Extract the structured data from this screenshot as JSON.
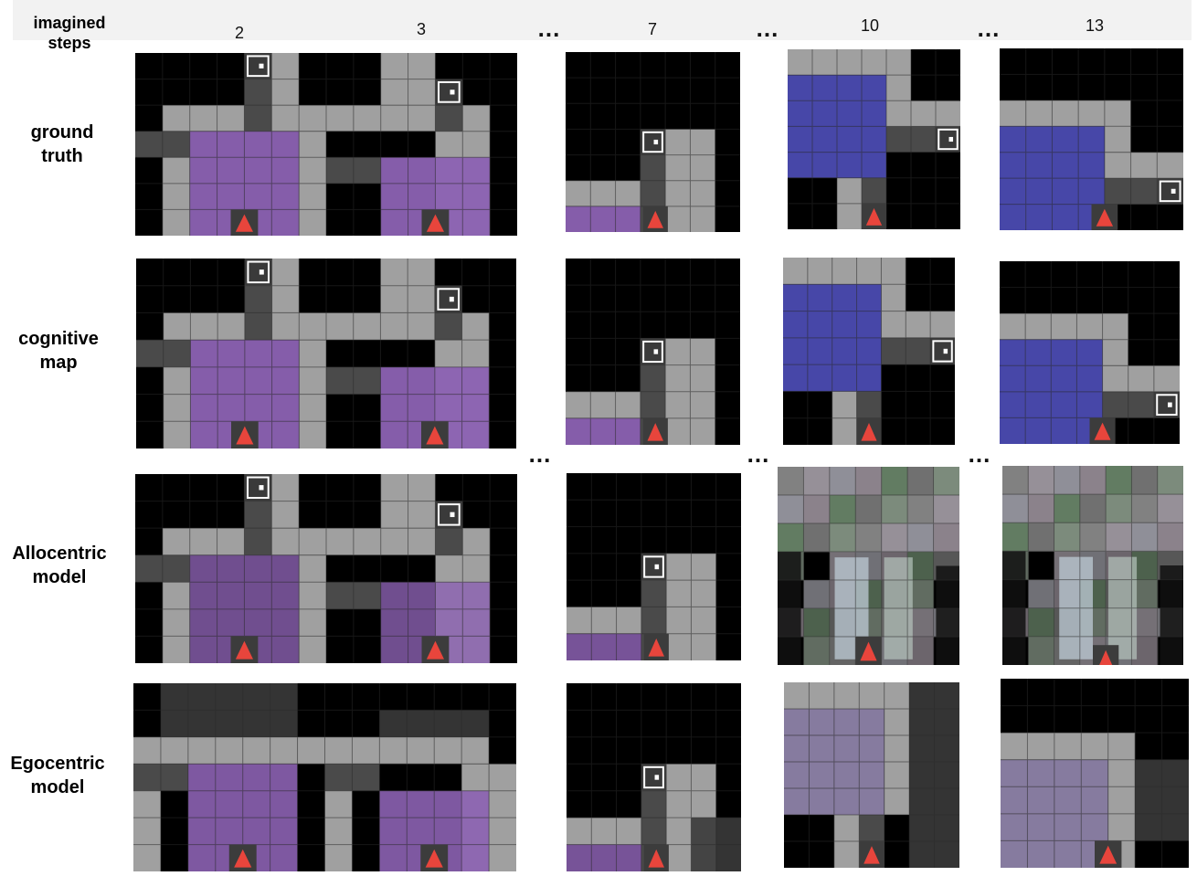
{
  "header": {
    "label": "imagined\nsteps",
    "steps": [
      "2",
      "3",
      "7",
      "10",
      "13"
    ],
    "ellipsis": "..."
  },
  "rows": [
    {
      "label": "ground\ntruth",
      "render": "gt"
    },
    {
      "label": "cognitive\nmap",
      "render": "cog"
    },
    {
      "label": "Allocentric\nmodel",
      "render": "allo"
    },
    {
      "label": "Egocentric\nmodel",
      "render": "ego"
    }
  ],
  "colors": {
    "wall": "#000000",
    "floor": "#a0a0a0",
    "dark_floor": "#4a4a4a",
    "purple_room": "#8c62b3",
    "blue_room": "#4747a8",
    "agent": "#e8453c",
    "marker": "#ffffff",
    "grid": "#2a2a2a"
  }
}
